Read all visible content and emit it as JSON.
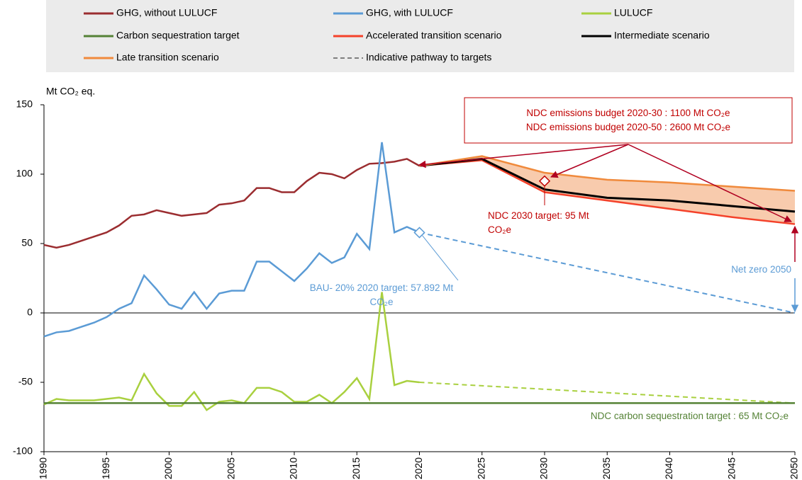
{
  "chart_data": {
    "type": "line",
    "y_label": "Mt CO₂ eq.",
    "xlim": [
      1990,
      2050
    ],
    "xticks": [
      1990,
      1995,
      2000,
      2005,
      2010,
      2015,
      2020,
      2025,
      2030,
      2035,
      2040,
      2045,
      2050
    ],
    "ylim": [
      -100,
      150
    ],
    "yticks": [
      -100,
      -50,
      0,
      50,
      100,
      150
    ],
    "zero_line": true,
    "legend": "top",
    "series": [
      {
        "name": "GHG, without LULUCF",
        "color": "#9b2d30",
        "x": [
          1990,
          1991,
          1992,
          1993,
          1994,
          1995,
          1996,
          1997,
          1998,
          1999,
          2000,
          2001,
          2002,
          2003,
          2004,
          2005,
          2006,
          2007,
          2008,
          2009,
          2010,
          2011,
          2012,
          2013,
          2014,
          2015,
          2016,
          2017,
          2018,
          2019,
          2020
        ],
        "values": [
          49,
          47,
          49,
          52,
          55,
          58,
          63,
          70,
          71,
          74,
          72,
          70,
          71,
          72,
          78,
          79,
          81,
          90,
          90,
          87,
          87,
          95,
          101,
          100,
          97,
          103,
          107.5,
          108,
          109,
          111,
          106
        ]
      },
      {
        "name": "GHG, with LULUCF",
        "color": "#5b9bd5",
        "x": [
          1990,
          1991,
          1992,
          1993,
          1994,
          1995,
          1996,
          1997,
          1998,
          1999,
          2000,
          2001,
          2002,
          2003,
          2004,
          2005,
          2006,
          2007,
          2008,
          2009,
          2010,
          2011,
          2012,
          2013,
          2014,
          2015,
          2016,
          2017,
          2018,
          2019,
          2020
        ],
        "values": [
          -17,
          -14,
          -13,
          -10,
          -7,
          -3,
          3,
          7,
          27,
          17,
          6,
          3,
          15,
          3,
          14,
          16,
          16,
          37,
          37,
          30,
          23,
          32,
          43,
          36,
          40,
          57,
          46,
          123,
          58,
          62,
          58
        ],
        "pathway": {
          "x": [
            2020,
            2050
          ],
          "values": [
            57.892,
            0
          ]
        }
      },
      {
        "name": "LULUCF",
        "color": "#a9d03f",
        "x": [
          1990,
          1991,
          1992,
          1993,
          1994,
          1995,
          1996,
          1997,
          1998,
          1999,
          2000,
          2001,
          2002,
          2003,
          2004,
          2005,
          2006,
          2007,
          2008,
          2009,
          2010,
          2011,
          2012,
          2013,
          2014,
          2015,
          2016,
          2017,
          2018,
          2019,
          2020
        ],
        "values": [
          -66,
          -62,
          -63,
          -63,
          -63,
          -62,
          -61,
          -63,
          -44,
          -58,
          -67,
          -67,
          -57,
          -70,
          -64,
          -63,
          -65,
          -54,
          -54,
          -57,
          -64,
          -64,
          -59,
          -65,
          -57,
          -47,
          -62,
          15,
          -52,
          -49,
          -50
        ],
        "pathway": {
          "x": [
            2020,
            2050
          ],
          "values": [
            -50,
            -65
          ]
        }
      },
      {
        "name": "Carbon sequestration target",
        "color": "#548235",
        "x": [
          1990,
          2050
        ],
        "values": [
          -65,
          -65
        ]
      },
      {
        "name": "Accelerated transition scenario",
        "color": "#f4412a",
        "x": [
          2020,
          2025,
          2030,
          2035,
          2040,
          2045,
          2050
        ],
        "values": [
          106,
          110,
          87,
          81,
          75,
          69,
          64
        ]
      },
      {
        "name": "Intermediate scenario",
        "color": "#000000",
        "x": [
          2020,
          2025,
          2030,
          2035,
          2040,
          2045,
          2050
        ],
        "values": [
          106,
          111,
          89,
          83,
          81,
          77,
          73
        ]
      },
      {
        "name": "Late transition scenario",
        "color": "#f08a3c",
        "x": [
          2020,
          2025,
          2030,
          2035,
          2040,
          2045,
          2050
        ],
        "values": [
          106,
          113,
          101,
          96,
          94,
          91,
          88
        ]
      }
    ],
    "pathway_legend": {
      "name": "Indicative pathway to targets",
      "color": "#7f7f7f"
    },
    "fill_between": {
      "series": [
        6,
        4
      ],
      "color": "#f8cbad"
    },
    "annotations": [
      {
        "text": [
          "NDC emissions budget 2020-30 : 1100 Mt CO₂e",
          "NDC emissions budget 2020-50 : 2600 Mt CO₂e"
        ],
        "color": "#c00000"
      },
      {
        "text": [
          "NDC 2030 target: 95 Mt",
          "CO₂e"
        ],
        "x": 2030,
        "y": 95,
        "color": "#c00000"
      },
      {
        "text": [
          "BAU- 20% 2020 target: 57.892 Mt",
          "CO₂e"
        ],
        "x": 2020,
        "y": 57.892,
        "color": "#5b9bd5"
      },
      {
        "text": [
          "Net zero 2050"
        ],
        "color": "#5b9bd5"
      },
      {
        "text": [
          "NDC carbon sequestration target : 65 Mt CO₂e"
        ],
        "color": "#548235"
      }
    ]
  }
}
